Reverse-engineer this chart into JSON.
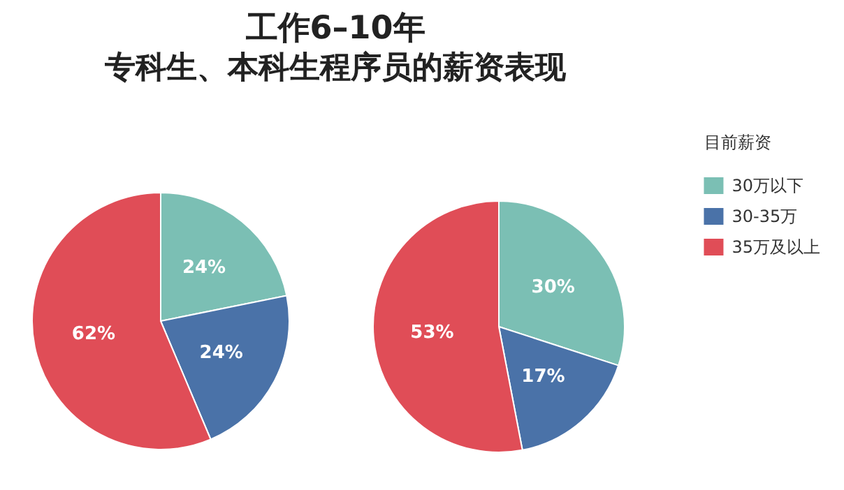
{
  "chart_data": {
    "type": "pie",
    "title": "工作6–10年",
    "subtitle": "专科生、本科生程序员的薪资表现",
    "categories": [
      "30万以下",
      "30-35万",
      "35万及以上"
    ],
    "colors": [
      "#7bbfb4",
      "#4a72a8",
      "#e04d57"
    ],
    "legend": "top right",
    "legend_title": "目前薪资",
    "series": [
      {
        "values": [
          24,
          24,
          62
        ],
        "value_labels": [
          "24%",
          "24%",
          "62%"
        ]
      },
      {
        "values": [
          30,
          17,
          53
        ],
        "value_labels": [
          "30%",
          "17%",
          "53%"
        ]
      }
    ]
  }
}
